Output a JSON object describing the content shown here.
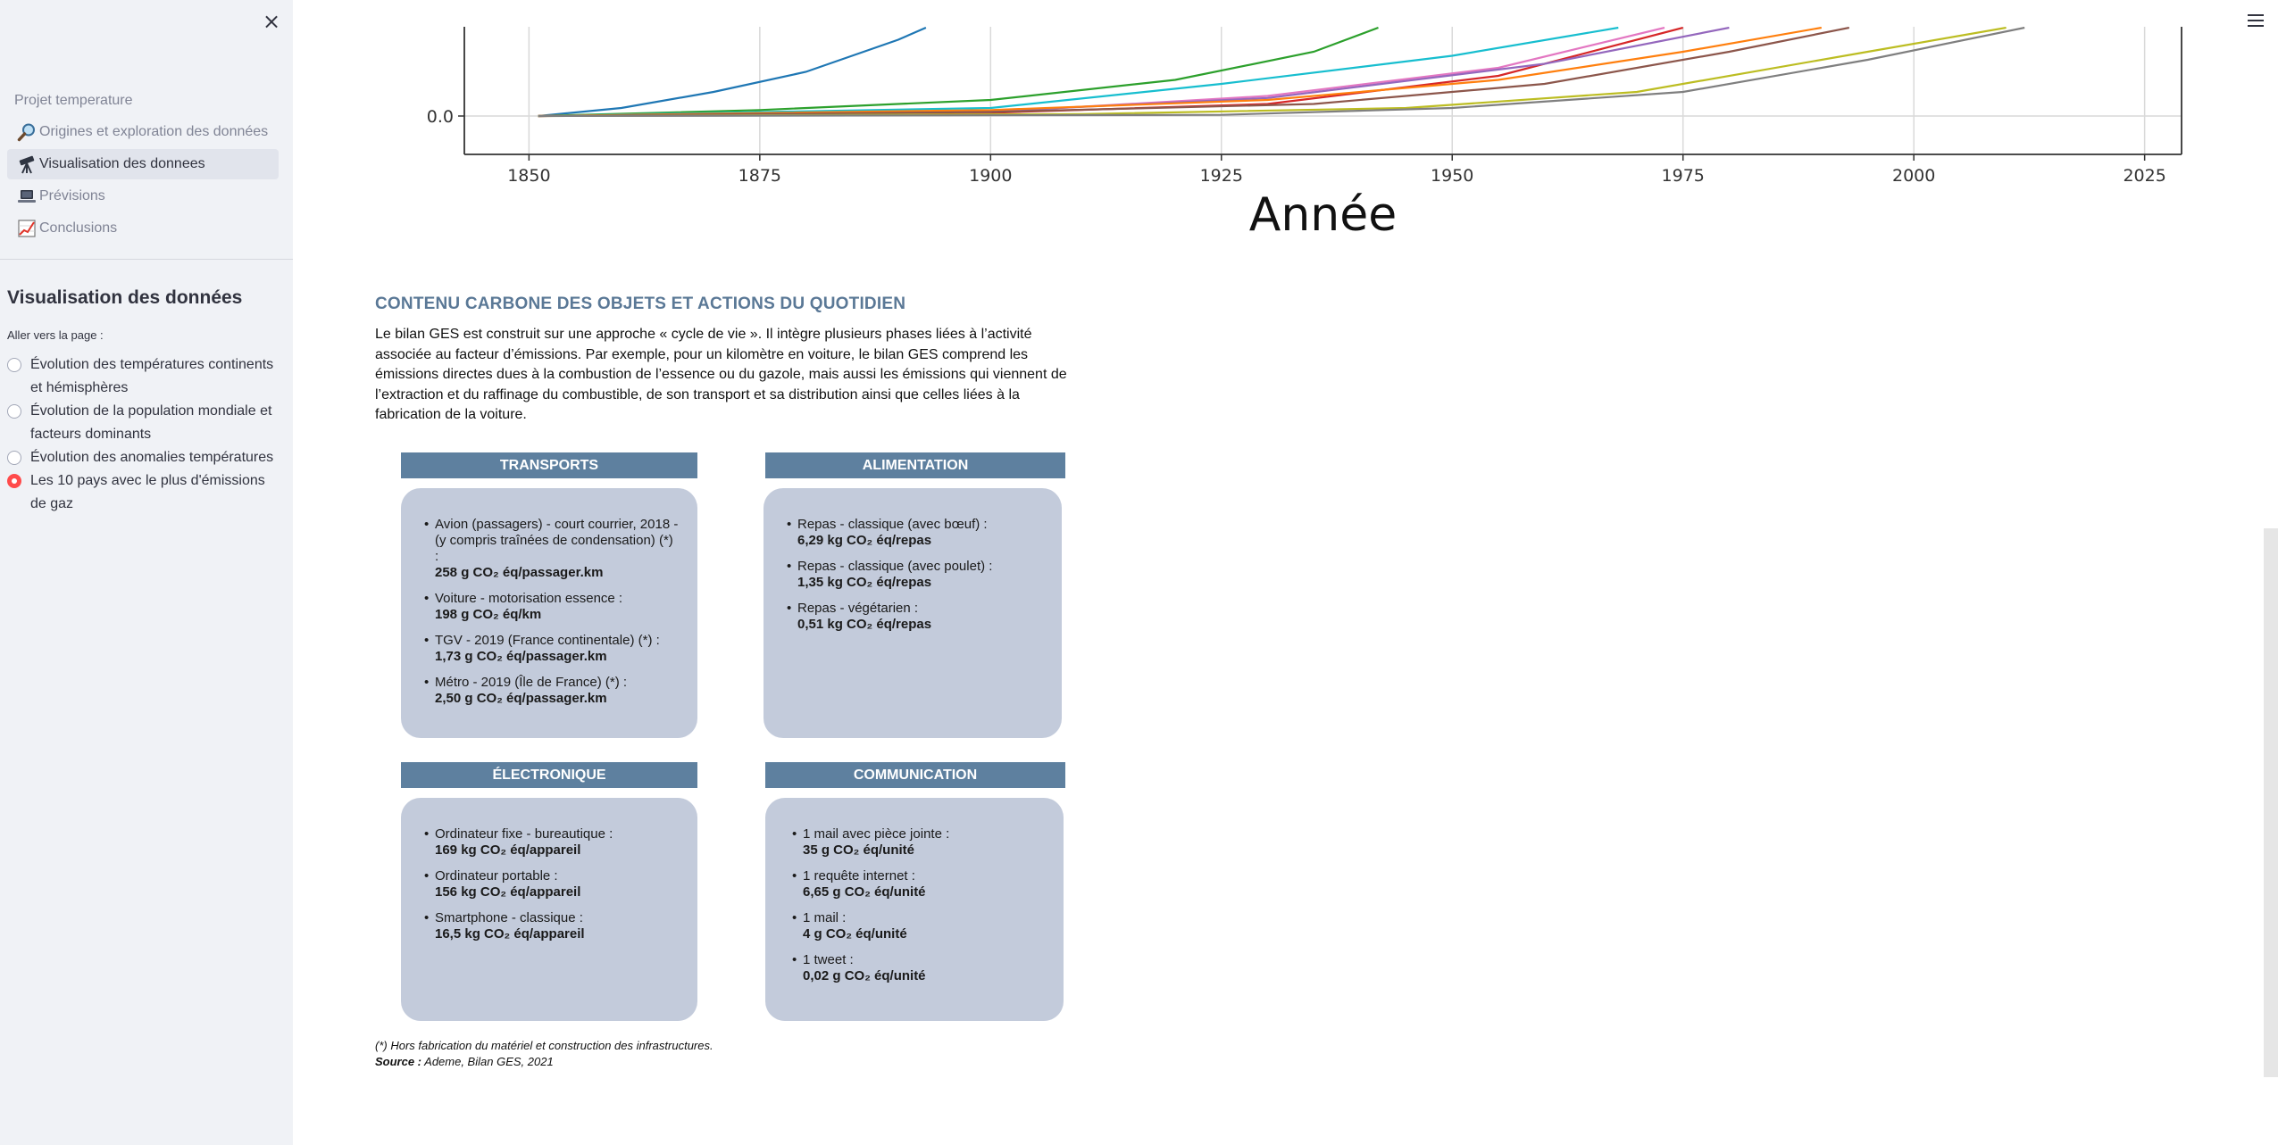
{
  "sidebar": {
    "close_icon": "close-icon",
    "nav_title": "Projet temperature",
    "nav_items": [
      {
        "label": "Origines et exploration des données",
        "icon": "magnifier-icon"
      },
      {
        "label": "Visualisation des donnees",
        "icon": "telescope-icon",
        "active": true
      },
      {
        "label": "Prévisions",
        "icon": "laptop-icon"
      },
      {
        "label": "Conclusions",
        "icon": "chart-increasing-icon"
      }
    ],
    "header": "Visualisation des données",
    "radio_label": "Aller vers la page :",
    "radio_options": [
      {
        "label": "Évolution des températures continents et hémisphères",
        "selected": false
      },
      {
        "label": "Évolution de la population mondiale et facteurs dominants",
        "selected": false
      },
      {
        "label": "Évolution des anomalies températures",
        "selected": false
      },
      {
        "label": "Les 10 pays avec le plus d'émissions de gaz",
        "selected": true
      }
    ],
    "accent_color": "#ff4b4b"
  },
  "chart_data": {
    "type": "line",
    "xlabel": "Année",
    "ylabel": "",
    "x_ticks": [
      "1850",
      "1875",
      "1900",
      "1925",
      "1950",
      "1975",
      "2000",
      "2025"
    ],
    "y_ticks": [
      "0.0"
    ],
    "xlim": [
      1843,
      2029
    ],
    "grid": true,
    "series": [
      {
        "color": "#1f77b4",
        "values": [
          [
            1851,
            0
          ],
          [
            1860,
            0.2
          ],
          [
            1870,
            0.6
          ],
          [
            1880,
            1.1
          ],
          [
            1890,
            1.9
          ],
          [
            1893,
            2.2
          ]
        ]
      },
      {
        "color": "#2ca02c",
        "values": [
          [
            1851,
            0
          ],
          [
            1875,
            0.15
          ],
          [
            1900,
            0.4
          ],
          [
            1920,
            0.9
          ],
          [
            1935,
            1.6
          ],
          [
            1942,
            2.2
          ]
        ]
      },
      {
        "color": "#17becf",
        "values": [
          [
            1851,
            0
          ],
          [
            1900,
            0.2
          ],
          [
            1925,
            0.8
          ],
          [
            1950,
            1.5
          ],
          [
            1968,
            2.2
          ]
        ]
      },
      {
        "color": "#d62728",
        "values": [
          [
            1851,
            0
          ],
          [
            1900,
            0.08
          ],
          [
            1930,
            0.3
          ],
          [
            1955,
            1.0
          ],
          [
            1975,
            2.2
          ]
        ]
      },
      {
        "color": "#e377c2",
        "values": [
          [
            1851,
            0
          ],
          [
            1900,
            0.1
          ],
          [
            1930,
            0.5
          ],
          [
            1955,
            1.2
          ],
          [
            1973,
            2.2
          ]
        ]
      },
      {
        "color": "#9467bd",
        "values": [
          [
            1851,
            0
          ],
          [
            1900,
            0.12
          ],
          [
            1930,
            0.45
          ],
          [
            1960,
            1.3
          ],
          [
            1980,
            2.2
          ]
        ]
      },
      {
        "color": "#ff7f0e",
        "values": [
          [
            1851,
            0
          ],
          [
            1900,
            0.15
          ],
          [
            1930,
            0.4
          ],
          [
            1955,
            0.9
          ],
          [
            1975,
            1.6
          ],
          [
            1990,
            2.2
          ]
        ]
      },
      {
        "color": "#8c564b",
        "values": [
          [
            1851,
            0
          ],
          [
            1900,
            0.1
          ],
          [
            1935,
            0.3
          ],
          [
            1960,
            0.8
          ],
          [
            1980,
            1.6
          ],
          [
            1993,
            2.2
          ]
        ]
      },
      {
        "color": "#bcbd22",
        "values": [
          [
            1851,
            0
          ],
          [
            1910,
            0.05
          ],
          [
            1945,
            0.2
          ],
          [
            1970,
            0.6
          ],
          [
            1995,
            1.6
          ],
          [
            2010,
            2.2
          ]
        ]
      },
      {
        "color": "#7f7f7f",
        "values": [
          [
            1851,
            0
          ],
          [
            1925,
            0.03
          ],
          [
            1950,
            0.2
          ],
          [
            1975,
            0.6
          ],
          [
            1995,
            1.4
          ],
          [
            2012,
            2.2
          ]
        ]
      }
    ]
  },
  "section": {
    "title": "CONTENU CARBONE DES OBJETS ET ACTIONS DU QUOTIDIEN",
    "intro": "Le bilan GES est construit sur une approche « cycle de vie ». Il intègre plusieurs phases liées à l’activité associée au facteur d’émissions. Par exemple, pour un kilomètre en voiture, le bilan GES comprend les émissions directes dues à la combustion de l’essence ou du gazole, mais aussi les émissions qui viennent de l’extraction et du raffinage du combustible, de son transport et sa distribution ainsi que celles liées à la fabrication de la voiture."
  },
  "cards": [
    {
      "title": "TRANSPORTS",
      "items": [
        {
          "text": "Avion (passagers) - court courrier, 2018 - (y compris traînées de condensation) (*) :",
          "value": "258 g CO₂ éq/passager.km"
        },
        {
          "text": "Voiture - motorisation essence :",
          "value": "198 g CO₂ éq/km"
        },
        {
          "text": "TGV - 2019 (France continentale) (*) :",
          "value": "1,73 g CO₂ éq/passager.km"
        },
        {
          "text": "Métro - 2019 (Île de France) (*) :",
          "value": "2,50 g CO₂ éq/passager.km"
        }
      ]
    },
    {
      "title": "ALIMENTATION",
      "items": [
        {
          "text": "Repas - classique (avec bœuf) :",
          "value": "6,29 kg CO₂ éq/repas"
        },
        {
          "text": "Repas - classique (avec poulet) :",
          "value": "1,35 kg CO₂ éq/repas"
        },
        {
          "text": "Repas - végétarien :",
          "value": "0,51 kg CO₂ éq/repas"
        }
      ]
    },
    {
      "title": "ÉLECTRONIQUE",
      "items": [
        {
          "text": "Ordinateur fixe - bureautique :",
          "value": "169 kg CO₂ éq/appareil"
        },
        {
          "text": "Ordinateur portable :",
          "value": "156 kg CO₂ éq/appareil"
        },
        {
          "text": "Smartphone - classique :",
          "value": "16,5 kg CO₂ éq/appareil"
        }
      ]
    },
    {
      "title": "COMMUNICATION",
      "items": [
        {
          "text": "1 mail avec pièce jointe :",
          "value": "35 g CO₂ éq/unité"
        },
        {
          "text": "1 requête internet :",
          "value": "6,65 g CO₂ éq/unité"
        },
        {
          "text": "1 mail :",
          "value": "4 g CO₂ éq/unité"
        },
        {
          "text": "1 tweet :",
          "value": "0,02 g CO₂ éq/unité"
        }
      ]
    }
  ],
  "footnote": {
    "note": "(*) Hors fabrication du matériel et construction des infrastructures.",
    "source_label": "Source :",
    "source_text": " Ademe, Bilan GES, 2021"
  },
  "header": {
    "menu_icon": "hamburger-menu-icon"
  }
}
